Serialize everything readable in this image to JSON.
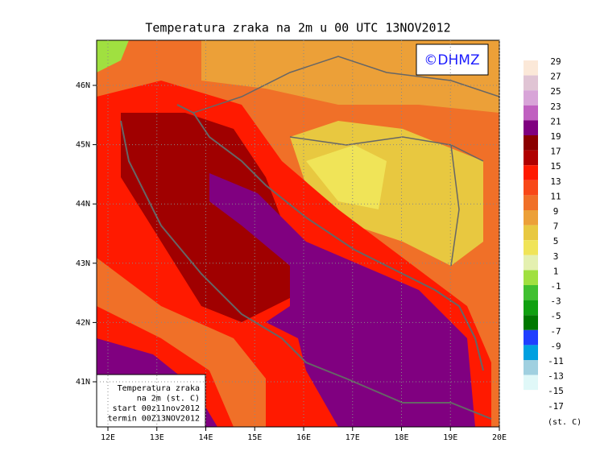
{
  "title": "Temperatura zraka na 2m u 00 UTC 13NOV2012",
  "logo": "©DHMZ",
  "lon_labels": [
    "12E",
    "13E",
    "14E",
    "15E",
    "16E",
    "17E",
    "18E",
    "19E",
    "20E"
  ],
  "lat_labels": [
    "46N",
    "45N",
    "44N",
    "43N",
    "42N",
    "41N"
  ],
  "legend": {
    "labels": [
      29,
      27,
      25,
      23,
      21,
      19,
      17,
      15,
      13,
      11,
      9,
      7,
      5,
      3,
      1,
      -1,
      -3,
      -5,
      -7,
      -9,
      -11,
      -13,
      -15,
      -17
    ],
    "colors": [
      "#fbe8d8",
      "#e0c4d4",
      "#d8a4d8",
      "#c060c0",
      "#800080",
      "#8b0000",
      "#b00000",
      "#ff1a00",
      "#f84818",
      "#f07028",
      "#eca038",
      "#e8c840",
      "#f0e458",
      "#e4f0b0",
      "#a0e040",
      "#40c030",
      "#10a010",
      "#007800",
      "#2040ff",
      "#00a0e0",
      "#a0d0e0",
      "#e0f8f8",
      "#ffffff"
    ],
    "unit": "(st. C)"
  },
  "info": [
    "Temperatura zraka",
    "na 2m (st. C)",
    "start 00z11nov2012",
    "termin 00Z13NOV2012"
  ]
}
